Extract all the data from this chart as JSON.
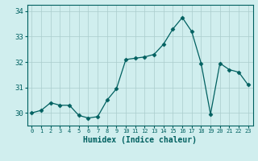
{
  "x": [
    0,
    1,
    2,
    3,
    4,
    5,
    6,
    7,
    8,
    9,
    10,
    11,
    12,
    13,
    14,
    15,
    16,
    17,
    18,
    19,
    20,
    21,
    22,
    23
  ],
  "y": [
    30.0,
    30.1,
    30.4,
    30.3,
    30.3,
    29.9,
    29.8,
    29.85,
    30.5,
    30.95,
    32.1,
    32.15,
    32.2,
    32.3,
    32.7,
    33.3,
    33.75,
    33.2,
    31.95,
    29.95,
    31.95,
    31.7,
    31.6,
    31.1
  ],
  "line_color": "#006060",
  "marker": "D",
  "marker_size": 2.5,
  "bg_color": "#d0eeee",
  "grid_color": "#aacccc",
  "xlabel": "Humidex (Indice chaleur)",
  "ylim": [
    29.5,
    34.25
  ],
  "xlim": [
    -0.5,
    23.5
  ],
  "yticks": [
    30,
    31,
    32,
    33,
    34
  ],
  "xticks": [
    0,
    1,
    2,
    3,
    4,
    5,
    6,
    7,
    8,
    9,
    10,
    11,
    12,
    13,
    14,
    15,
    16,
    17,
    18,
    19,
    20,
    21,
    22,
    23
  ],
  "tick_color": "#006060",
  "xlabel_color": "#006060",
  "xlabel_fontsize": 7,
  "tick_fontsize": 6.5
}
